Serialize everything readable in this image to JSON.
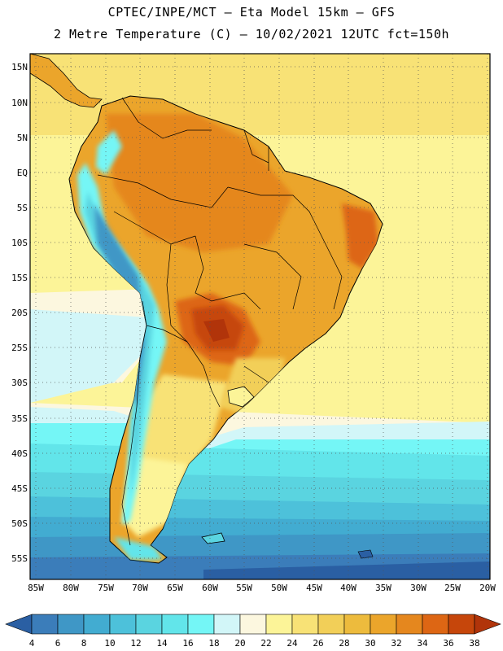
{
  "header": {
    "line1": "CPTEC/INPE/MCT –  Eta Model 15km – GFS",
    "line2": "2 Metre Temperature (C) – 10/02/2021 12UTC fct=150h"
  },
  "axes": {
    "lat_labels": [
      "15N",
      "10N",
      "5N",
      "EQ",
      "5S",
      "10S",
      "15S",
      "20S",
      "25S",
      "30S",
      "35S",
      "40S",
      "45S",
      "50S",
      "55S"
    ],
    "lon_labels": [
      "85W",
      "80W",
      "75W",
      "70W",
      "65W",
      "60W",
      "55W",
      "50W",
      "45W",
      "40W",
      "35W",
      "30W",
      "25W",
      "20W"
    ]
  },
  "colorbar": {
    "values": [
      "4",
      "6",
      "8",
      "10",
      "12",
      "14",
      "16",
      "18",
      "20",
      "22",
      "24",
      "26",
      "28",
      "30",
      "32",
      "34",
      "36",
      "38"
    ],
    "colors": [
      "#2a5fa3",
      "#3b7dba",
      "#3f97c6",
      "#42acd1",
      "#4dc1da",
      "#5ad4e0",
      "#62e5ea",
      "#74f6f6",
      "#d2f6f8",
      "#fcf7df",
      "#fcf498",
      "#f8e276",
      "#f2cf58",
      "#edbb3d",
      "#eba52b",
      "#e5871e",
      "#dd6614",
      "#c6460b",
      "#b1340a"
    ]
  }
}
